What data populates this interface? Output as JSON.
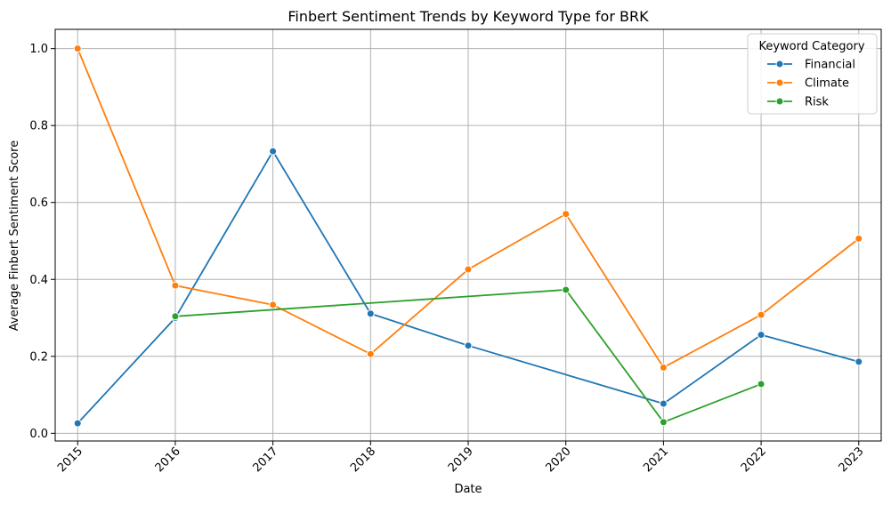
{
  "chart_data": {
    "type": "line",
    "title": "Finbert Sentiment Trends by Keyword Type for BRK",
    "xlabel": "Date",
    "ylabel": "Average Finbert Sentiment Score",
    "x": [
      "2015",
      "2016",
      "2017",
      "2018",
      "2019",
      "2020",
      "2021",
      "2022",
      "2023"
    ],
    "xlim": [
      2014.77,
      2023.23
    ],
    "ylim": [
      -0.02,
      1.05
    ],
    "yticks": [
      0.0,
      0.2,
      0.4,
      0.6,
      0.8,
      1.0
    ],
    "ytick_labels": [
      "0.0",
      "0.2",
      "0.4",
      "0.6",
      "0.8",
      "1.0"
    ],
    "grid": true,
    "legend": {
      "title": "Keyword Category",
      "placement": "top-right"
    },
    "series": [
      {
        "name": "Financial",
        "color": "#1f77b4",
        "x": [
          2015,
          2016,
          2017,
          2018,
          2019,
          2021,
          2022,
          2023
        ],
        "values": [
          0.026,
          0.3,
          0.733,
          0.311,
          0.228,
          0.077,
          0.256,
          0.186
        ]
      },
      {
        "name": "Climate",
        "color": "#ff7f0e",
        "x": [
          2015,
          2016,
          2017,
          2018,
          2019,
          2020,
          2021,
          2022,
          2023
        ],
        "values": [
          1.0,
          0.384,
          0.334,
          0.206,
          0.426,
          0.57,
          0.171,
          0.308,
          0.506
        ]
      },
      {
        "name": "Risk",
        "color": "#2ca02c",
        "x": [
          2016,
          2020,
          2021,
          2022
        ],
        "values": [
          0.304,
          0.373,
          0.029,
          0.128
        ]
      }
    ]
  }
}
